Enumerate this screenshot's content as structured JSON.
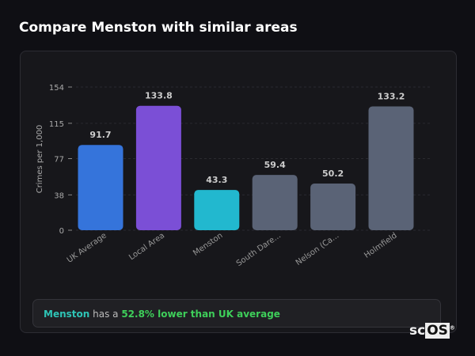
{
  "title": "Compare Menston with similar areas",
  "chart_data": {
    "type": "bar",
    "ylabel": "Crimes per 1,000",
    "yticks": [
      0,
      38,
      77,
      115,
      154
    ],
    "ylim": [
      0,
      154
    ],
    "grid": true,
    "categories": [
      "UK Average",
      "Local Area",
      "Menston",
      "South Dare...",
      "Nelson (Ca...",
      "Holmfield"
    ],
    "values": [
      91.7,
      133.8,
      43.3,
      59.4,
      50.2,
      133.2
    ],
    "value_labels": [
      "91.7",
      "133.8",
      "43.3",
      "59.4",
      "50.2",
      "133.2"
    ],
    "colors": [
      "#3574db",
      "#7b4fd6",
      "#22b8cf",
      "#5a6376",
      "#5a6376",
      "#5a6376"
    ]
  },
  "summary": {
    "area": "Menston",
    "middle": " has a ",
    "highlight": "52.8% lower than UK average"
  },
  "logo": {
    "sc": "sc",
    "os": "OS",
    "mark": "®"
  }
}
